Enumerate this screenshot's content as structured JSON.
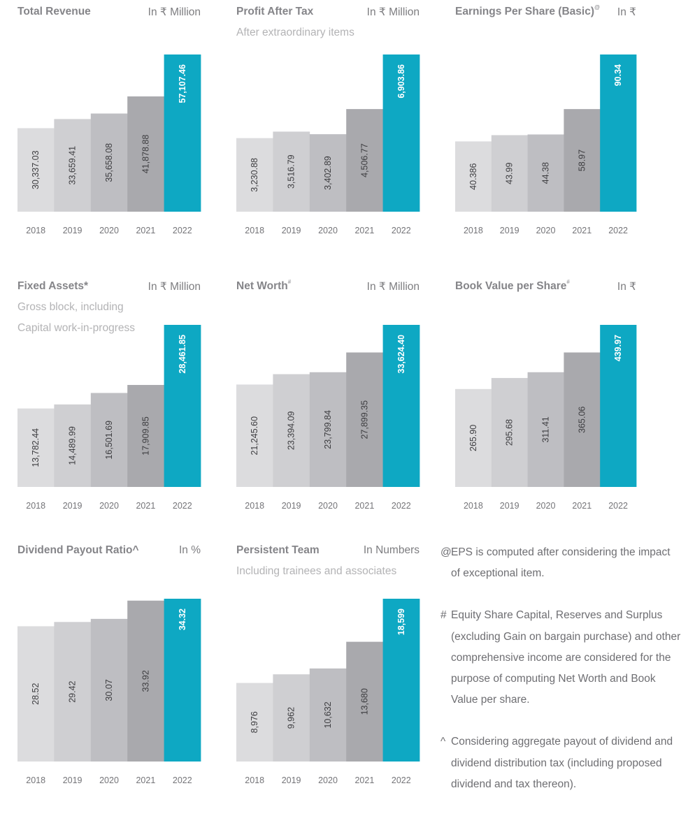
{
  "colors": {
    "bars": [
      "#dcdcde",
      "#cfcfd2",
      "#bebec2",
      "#a9a9ad",
      "#0ea8c3"
    ],
    "label_dark": "#3d3d40",
    "label_highlight": "#ffffff",
    "axis_text": "#747478"
  },
  "panels": [
    {
      "title": "Total Revenue",
      "title_mark": "",
      "unit": "In ₹ Million",
      "subtitle": [
        "",
        ""
      ],
      "chart_data": {
        "type": "bar",
        "categories": [
          "2018",
          "2019",
          "2020",
          "2021",
          "2022"
        ],
        "values": [
          30337.03,
          33659.41,
          35658.08,
          41878.88,
          57107.46
        ],
        "value_labels": [
          "30,337.03",
          "33,659.41",
          "35,658.08",
          "41,878.88",
          "57,107.46"
        ]
      }
    },
    {
      "title": "Profit After Tax",
      "title_mark": "",
      "unit": "In ₹ Million",
      "subtitle": [
        "After extraordinary items",
        ""
      ],
      "chart_data": {
        "type": "bar",
        "categories": [
          "2018",
          "2019",
          "2020",
          "2021",
          "2022"
        ],
        "values": [
          3230.88,
          3516.79,
          3402.89,
          4506.77,
          6903.86
        ],
        "value_labels": [
          "3,230.88",
          "3,516.79",
          "3,402.89",
          "4,506.77",
          "6,903.86"
        ]
      }
    },
    {
      "title": "Earnings Per Share (Basic)",
      "title_mark": "@",
      "unit": "In ₹",
      "subtitle": [
        "",
        ""
      ],
      "chart_data": {
        "type": "bar",
        "categories": [
          "2018",
          "2019",
          "2020",
          "2021",
          "2022"
        ],
        "values": [
          40.386,
          43.99,
          44.38,
          58.97,
          90.34
        ],
        "value_labels": [
          "40.386",
          "43.99",
          "44.38",
          "58.97",
          "90.34"
        ]
      }
    },
    {
      "title": "Fixed Assets*",
      "title_mark": "",
      "unit": "In ₹ Million",
      "subtitle": [
        "Gross block, including",
        "Capital work-in-progress"
      ],
      "chart_data": {
        "type": "bar",
        "categories": [
          "2018",
          "2019",
          "2020",
          "2021",
          "2022"
        ],
        "values": [
          13782.44,
          14489.99,
          16501.69,
          17909.85,
          28461.85
        ],
        "value_labels": [
          "13,782.44",
          "14,489.99",
          "16,501.69",
          "17,909.85",
          "28,461.85"
        ]
      }
    },
    {
      "title": "Net Worth",
      "title_mark": "#",
      "unit": "In ₹ Million",
      "subtitle": [
        "",
        ""
      ],
      "chart_data": {
        "type": "bar",
        "categories": [
          "2018",
          "2019",
          "2020",
          "2021",
          "2022"
        ],
        "values": [
          21245.6,
          23394.09,
          23799.84,
          27899.35,
          33624.4
        ],
        "value_labels": [
          "21,245.60",
          "23,394.09",
          "23,799.84",
          "27,899.35",
          "33,624.40"
        ]
      }
    },
    {
      "title": "Book Value per Share",
      "title_mark": "#",
      "unit": "In ₹",
      "subtitle": [
        "",
        ""
      ],
      "chart_data": {
        "type": "bar",
        "categories": [
          "2018",
          "2019",
          "2020",
          "2021",
          "2022"
        ],
        "values": [
          265.9,
          295.68,
          311.41,
          365.06,
          439.97
        ],
        "value_labels": [
          "265.90",
          "295.68",
          "311.41",
          "365.06",
          "439.97"
        ]
      }
    },
    {
      "title": "Dividend Payout Ratio^",
      "title_mark": "",
      "unit": "In %",
      "subtitle": [
        "",
        ""
      ],
      "chart_data": {
        "type": "bar",
        "categories": [
          "2018",
          "2019",
          "2020",
          "2021",
          "2022"
        ],
        "values": [
          28.52,
          29.42,
          30.07,
          33.92,
          34.32
        ],
        "value_labels": [
          "28.52",
          "29.42",
          "30.07",
          "33.92",
          "34.32"
        ]
      }
    },
    {
      "title": "Persistent Team",
      "title_mark": "",
      "unit": "In Numbers",
      "subtitle": [
        "Including trainees and associates",
        ""
      ],
      "chart_data": {
        "type": "bar",
        "categories": [
          "2018",
          "2019",
          "2020",
          "2021",
          "2022"
        ],
        "values": [
          8976,
          9962,
          10632,
          13680,
          18599
        ],
        "value_labels": [
          "8,976",
          "9,962",
          "10,632",
          "13,680",
          "18,599"
        ]
      }
    }
  ],
  "notes": [
    {
      "symbol": "@",
      "text": "EPS is computed after considering the impact of exceptional item."
    },
    {
      "symbol": "#",
      "text": "Equity Share Capital, Reserves and Surplus (excluding Gain on bargain purchase) and other comprehensive income are considered for the purpose of computing Net Worth and Book Value per share."
    },
    {
      "symbol": "^",
      "text": "Considering aggregate payout of dividend and dividend distribution tax (including proposed dividend and tax thereon)."
    }
  ]
}
